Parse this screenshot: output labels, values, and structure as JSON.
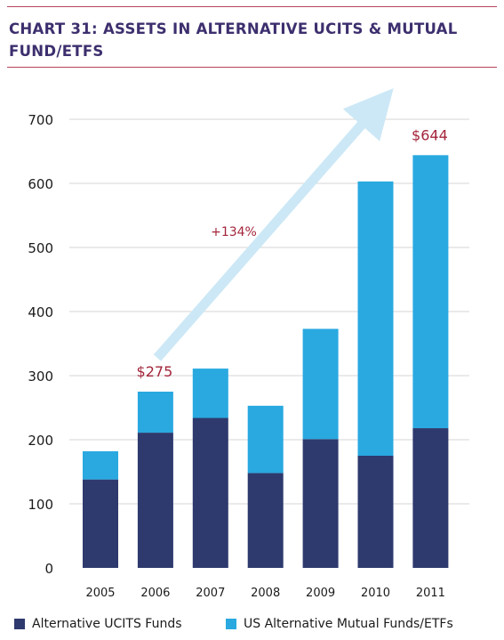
{
  "header": {
    "title": "CHART 31:  ASSETS IN ALTERNATIVE UCITS & MUTUAL FUND/ETFS"
  },
  "colors": {
    "accent_rule": "#b5455a",
    "title": "#3d2f6e",
    "series_ucits": "#2e3a6e",
    "series_us": "#29a9e0",
    "arrow": "#cce8f6",
    "annotation": "#a3253b",
    "grid": "#d4d4d4"
  },
  "chart_data": {
    "type": "bar",
    "stacked": true,
    "categories": [
      "2005",
      "2006",
      "2007",
      "2008",
      "2009",
      "2010",
      "2011"
    ],
    "series": [
      {
        "name": "Alternative UCITS  Funds",
        "values": [
          138,
          211,
          234,
          148,
          201,
          175,
          218
        ]
      },
      {
        "name": "US Alternative Mutual Funds/ETFs",
        "values": [
          44,
          64,
          77,
          105,
          172,
          428,
          426
        ]
      }
    ],
    "ylim": [
      0,
      700
    ],
    "yticks": [
      "0",
      "100",
      "200",
      "300",
      "400",
      "500",
      "600",
      "700"
    ],
    "grid": true,
    "legend": "bottom",
    "annotations": [
      {
        "text": "$275",
        "category": "2006",
        "value": 275
      },
      {
        "text": "$644",
        "category": "2011",
        "value": 644
      },
      {
        "text": "+134%",
        "between": [
          "2006",
          "2011"
        ]
      }
    ],
    "trend_arrow": {
      "from": "2006",
      "to": "2011"
    }
  }
}
